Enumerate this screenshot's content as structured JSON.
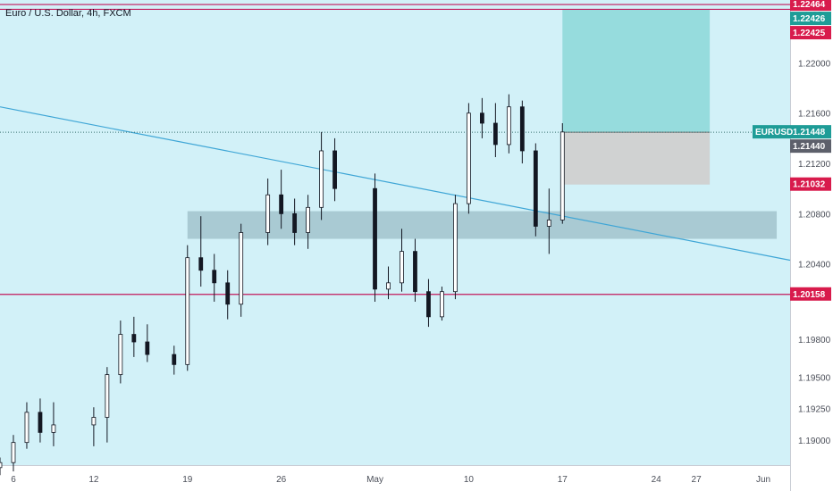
{
  "header": {
    "symbol_title": "Euro / U.S. Dollar",
    "interval": "4h",
    "exchange": "FXCM"
  },
  "price_axis": {
    "unit": "USD"
  },
  "colors": {
    "background": "#d2f1f8",
    "up": "#26a69a",
    "down": "#ef5350",
    "candle_stroke": "#131722",
    "level_line": "#c2185b",
    "trendline": "#3fa6d6",
    "zone": "#9bbcc7",
    "target_zone": "#8fd9d9",
    "stop_zone": "#d0d0d0"
  },
  "chart_data": {
    "type": "candlestick",
    "symbol": "EURUSD",
    "interval": "4h",
    "ylim": [
      1.188,
      1.225
    ],
    "xlim": [
      "2021-04-05",
      "2021-06-03"
    ],
    "x_ticks": [
      {
        "label": "6",
        "date": "2021-04-06"
      },
      {
        "label": "12",
        "date": "2021-04-12"
      },
      {
        "label": "19",
        "date": "2021-04-19"
      },
      {
        "label": "26",
        "date": "2021-04-26"
      },
      {
        "label": "May",
        "date": "2021-05-03"
      },
      {
        "label": "10",
        "date": "2021-05-10"
      },
      {
        "label": "17",
        "date": "2021-05-17"
      },
      {
        "label": "24",
        "date": "2021-05-24"
      },
      {
        "label": "27",
        "date": "2021-05-27"
      },
      {
        "label": "Jun",
        "date": "2021-06-01"
      }
    ],
    "y_ticks": [
      1.22,
      1.216,
      1.212,
      1.208,
      1.204,
      1.198,
      1.195,
      1.1925,
      1.19
    ],
    "y_tick_labels": [
      "1.22000",
      "1.21600",
      "1.21200",
      "1.20800",
      "1.20400",
      "1.19800",
      "1.19500",
      "1.19250",
      "1.19000"
    ],
    "price_labels": [
      {
        "value": 1.22464,
        "text": "1.22464",
        "style": "red"
      },
      {
        "value": 1.22426,
        "text": "1.22426",
        "style": "teal"
      },
      {
        "value": 1.22425,
        "text": "1.22425",
        "style": "red"
      },
      {
        "value": 1.21448,
        "text": "1.21448",
        "style": "teal",
        "tag": "EURUSD"
      },
      {
        "value": 1.2144,
        "text": "1.21440",
        "style": "gray"
      },
      {
        "value": 1.21032,
        "text": "1.21032",
        "style": "red"
      },
      {
        "value": 1.20158,
        "text": "1.20158",
        "style": "red"
      }
    ],
    "horizontal_levels": [
      1.22464,
      1.22426,
      1.20158
    ],
    "last_price": 1.21448,
    "trendline": {
      "start": {
        "date": "2021-04-05",
        "price": 1.2165
      },
      "end": {
        "date": "2021-06-03",
        "price": 1.2043
      }
    },
    "support_zone": {
      "from": "2021-04-19",
      "to": "2021-06-02",
      "low": 1.206,
      "high": 1.2082
    },
    "position": {
      "entry": 1.21448,
      "target": 1.22425,
      "stop": 1.21032,
      "from": "2021-05-17",
      "to": "2021-05-28"
    },
    "candles": [
      {
        "date": "2021-04-05",
        "ohlc": [
          1.1878,
          1.1886,
          1.1872,
          1.1882
        ]
      },
      {
        "date": "2021-04-06",
        "ohlc": [
          1.1882,
          1.1904,
          1.1875,
          1.1898
        ]
      },
      {
        "date": "2021-04-07",
        "ohlc": [
          1.1898,
          1.193,
          1.1893,
          1.1922
        ]
      },
      {
        "date": "2021-04-08",
        "ohlc": [
          1.1922,
          1.1933,
          1.1898,
          1.1906
        ]
      },
      {
        "date": "2021-04-09",
        "ohlc": [
          1.1906,
          1.193,
          1.1895,
          1.1912
        ]
      },
      {
        "date": "2021-04-12",
        "ohlc": [
          1.1912,
          1.1926,
          1.1895,
          1.1918
        ]
      },
      {
        "date": "2021-04-13",
        "ohlc": [
          1.1918,
          1.1958,
          1.1898,
          1.1952
        ]
      },
      {
        "date": "2021-04-14",
        "ohlc": [
          1.1952,
          1.1995,
          1.1945,
          1.1984
        ]
      },
      {
        "date": "2021-04-15",
        "ohlc": [
          1.1984,
          1.1998,
          1.1966,
          1.1978
        ]
      },
      {
        "date": "2021-04-16",
        "ohlc": [
          1.1978,
          1.1992,
          1.1962,
          1.1968
        ]
      },
      {
        "date": "2021-04-18",
        "ohlc": [
          1.1968,
          1.1975,
          1.1952,
          1.196
        ]
      },
      {
        "date": "2021-04-19",
        "ohlc": [
          1.196,
          1.2055,
          1.1955,
          1.2045
        ]
      },
      {
        "date": "2021-04-20",
        "ohlc": [
          1.2045,
          1.2078,
          1.2022,
          1.2035
        ]
      },
      {
        "date": "2021-04-21",
        "ohlc": [
          1.2035,
          1.2048,
          1.201,
          1.2025
        ]
      },
      {
        "date": "2021-04-22",
        "ohlc": [
          1.2025,
          1.2035,
          1.1996,
          1.2008
        ]
      },
      {
        "date": "2021-04-23",
        "ohlc": [
          1.2008,
          1.2072,
          1.1998,
          1.2065
        ]
      },
      {
        "date": "2021-04-25",
        "ohlc": [
          1.2065,
          1.2108,
          1.2055,
          1.2095
        ]
      },
      {
        "date": "2021-04-26",
        "ohlc": [
          1.2095,
          1.2115,
          1.2068,
          1.208
        ]
      },
      {
        "date": "2021-04-27",
        "ohlc": [
          1.208,
          1.2092,
          1.2055,
          1.2065
        ]
      },
      {
        "date": "2021-04-28",
        "ohlc": [
          1.2065,
          1.2095,
          1.2052,
          1.2085
        ]
      },
      {
        "date": "2021-04-29",
        "ohlc": [
          1.2085,
          1.2145,
          1.2075,
          1.213
        ]
      },
      {
        "date": "2021-04-30",
        "ohlc": [
          1.213,
          1.214,
          1.209,
          1.21
        ]
      },
      {
        "date": "2021-05-03",
        "ohlc": [
          1.21,
          1.2112,
          1.201,
          1.202
        ]
      },
      {
        "date": "2021-05-04",
        "ohlc": [
          1.202,
          1.2038,
          1.2012,
          1.2025
        ]
      },
      {
        "date": "2021-05-05",
        "ohlc": [
          1.2025,
          1.2068,
          1.2018,
          1.205
        ]
      },
      {
        "date": "2021-05-06",
        "ohlc": [
          1.205,
          1.206,
          1.201,
          1.2018
        ]
      },
      {
        "date": "2021-05-07",
        "ohlc": [
          1.2018,
          1.2028,
          1.199,
          1.1998
        ]
      },
      {
        "date": "2021-05-08",
        "ohlc": [
          1.1998,
          1.2022,
          1.1995,
          1.2018
        ]
      },
      {
        "date": "2021-05-09",
        "ohlc": [
          1.2018,
          1.2095,
          1.2012,
          1.2088
        ]
      },
      {
        "date": "2021-05-10",
        "ohlc": [
          1.2088,
          1.2168,
          1.208,
          1.216
        ]
      },
      {
        "date": "2021-05-11",
        "ohlc": [
          1.216,
          1.2172,
          1.214,
          1.2152
        ]
      },
      {
        "date": "2021-05-12",
        "ohlc": [
          1.2152,
          1.2168,
          1.2125,
          1.2135
        ]
      },
      {
        "date": "2021-05-13",
        "ohlc": [
          1.2135,
          1.2175,
          1.2128,
          1.2165
        ]
      },
      {
        "date": "2021-05-14",
        "ohlc": [
          1.2165,
          1.217,
          1.212,
          1.213
        ]
      },
      {
        "date": "2021-05-15",
        "ohlc": [
          1.213,
          1.2136,
          1.2062,
          1.207
        ]
      },
      {
        "date": "2021-05-16",
        "ohlc": [
          1.207,
          1.21,
          1.2048,
          1.2075
        ]
      },
      {
        "date": "2021-05-17",
        "ohlc": [
          1.2075,
          1.2152,
          1.2072,
          1.2145
        ]
      }
    ]
  }
}
